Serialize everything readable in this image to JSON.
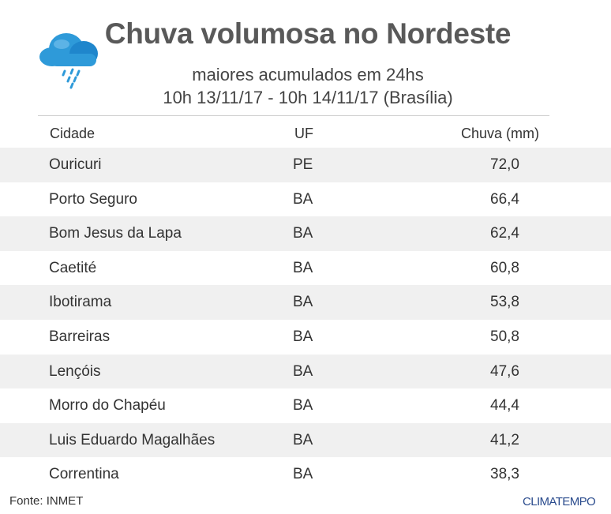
{
  "header": {
    "title": "Chuva volumosa no Nordeste",
    "subtitle": "maiores acumulados em 24hs",
    "period": "10h 13/11/17 - 10h 14/11/17 (Brasília)",
    "icon": "rain-cloud-icon"
  },
  "colors": {
    "cloud_blue": "#2e9ad9",
    "cloud_dark": "#1b6fb3",
    "row_stripe": "#f0f0f0",
    "logo": "#2a4b8d"
  },
  "chart_data": {
    "type": "table",
    "columns": [
      "Cidade",
      "UF",
      "Chuva (mm)"
    ],
    "rows": [
      {
        "city": "Ouricuri",
        "uf": "PE",
        "rain": "72,0"
      },
      {
        "city": "Porto Seguro",
        "uf": "BA",
        "rain": "66,4"
      },
      {
        "city": "Bom Jesus da Lapa",
        "uf": "BA",
        "rain": "62,4"
      },
      {
        "city": "Caetité",
        "uf": "BA",
        "rain": "60,8"
      },
      {
        "city": "Ibotirama",
        "uf": "BA",
        "rain": "53,8"
      },
      {
        "city": "Barreiras",
        "uf": "BA",
        "rain": "50,8"
      },
      {
        "city": "Lençóis",
        "uf": "BA",
        "rain": "47,6"
      },
      {
        "city": "Morro do Chapéu",
        "uf": "BA",
        "rain": "44,4"
      },
      {
        "city": "Luis Eduardo Magalhães",
        "uf": "BA",
        "rain": "41,2"
      },
      {
        "city": "Correntina",
        "uf": "BA",
        "rain": "38,3"
      }
    ]
  },
  "footer": {
    "source": "Fonte: INMET",
    "logo_text": "CLIMATEMPO"
  }
}
